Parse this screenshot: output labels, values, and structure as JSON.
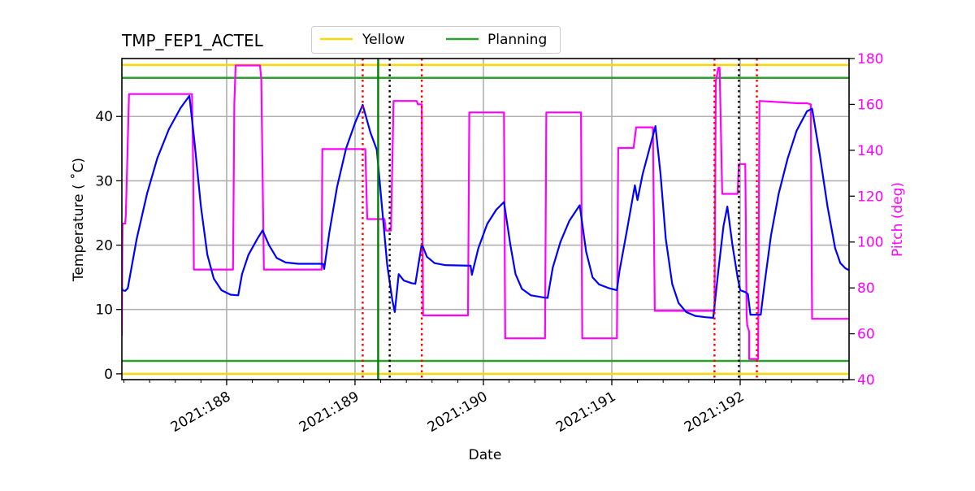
{
  "chart_data": {
    "type": "line",
    "title": "TMP_FEP1_ACTEL",
    "xlabel": "Date",
    "ylabel": "Temperature ($^\\circ$C)",
    "ylabel_display": "Temperature ( ˚C)",
    "y2label": "Pitch (deg)",
    "xlim": [
      187.184,
      192.848
    ],
    "ylim": [
      -0.9,
      49.0
    ],
    "y2lim": [
      40,
      180
    ],
    "grid": true,
    "x_ticks": [
      {
        "value": 188,
        "label": "2021:188"
      },
      {
        "value": 189,
        "label": "2021:189"
      },
      {
        "value": 190,
        "label": "2021:190"
      },
      {
        "value": 191,
        "label": "2021:191"
      },
      {
        "value": 192,
        "label": "2021:192"
      }
    ],
    "y_ticks": [
      0,
      10,
      20,
      30,
      40
    ],
    "y2_ticks": [
      40,
      60,
      80,
      100,
      120,
      140,
      160,
      180
    ],
    "legend": {
      "position": "top-center-outside",
      "entries": [
        {
          "label": "Yellow",
          "color": "#ffd700"
        },
        {
          "label": "Planning",
          "color": "#2ca02c"
        }
      ]
    },
    "limit_lines": [
      {
        "name": "Yellow high",
        "value": 48.0,
        "color": "#ffd700",
        "axis": "temperature"
      },
      {
        "name": "Planning high",
        "value": 46.0,
        "color": "#2ca02c",
        "axis": "temperature"
      },
      {
        "name": "Planning low",
        "value": 2.0,
        "color": "#2ca02c",
        "axis": "temperature"
      },
      {
        "name": "Yellow low",
        "value": 0.0,
        "color": "#ffd700",
        "axis": "temperature"
      }
    ],
    "vertical_lines": [
      {
        "x": 189.06,
        "color": "#ff0000",
        "style": "dotted"
      },
      {
        "x": 189.18,
        "color": "#008000",
        "style": "solid"
      },
      {
        "x": 189.27,
        "color": "#000000",
        "style": "dotted"
      },
      {
        "x": 189.52,
        "color": "#ff0000",
        "style": "dotted"
      },
      {
        "x": 191.8,
        "color": "#ff0000",
        "style": "dotted"
      },
      {
        "x": 191.99,
        "color": "#000000",
        "style": "dotted"
      },
      {
        "x": 192.13,
        "color": "#ff0000",
        "style": "dotted"
      }
    ],
    "series": [
      {
        "name": "TMP_FEP1_ACTEL",
        "axis": "temperature",
        "color": "#0000ff",
        "points": [
          [
            187.184,
            13.4
          ],
          [
            187.19,
            13.0
          ],
          [
            187.21,
            12.9
          ],
          [
            187.23,
            13.3
          ],
          [
            187.25,
            15.5
          ],
          [
            187.3,
            21.0
          ],
          [
            187.38,
            28.0
          ],
          [
            187.46,
            33.5
          ],
          [
            187.55,
            38.0
          ],
          [
            187.64,
            41.3
          ],
          [
            187.71,
            43.2
          ],
          [
            187.75,
            36.0
          ],
          [
            187.8,
            26.0
          ],
          [
            187.85,
            18.5
          ],
          [
            187.9,
            14.8
          ],
          [
            187.96,
            13.0
          ],
          [
            188.03,
            12.3
          ],
          [
            188.09,
            12.2
          ],
          [
            188.12,
            15.5
          ],
          [
            188.17,
            18.5
          ],
          [
            188.24,
            21.0
          ],
          [
            188.28,
            22.3
          ],
          [
            188.33,
            20.0
          ],
          [
            188.39,
            18.0
          ],
          [
            188.46,
            17.3
          ],
          [
            188.56,
            17.1
          ],
          [
            188.75,
            17.1
          ],
          [
            188.76,
            16.3
          ],
          [
            188.8,
            22.0
          ],
          [
            188.86,
            29.0
          ],
          [
            188.93,
            35.0
          ],
          [
            189.0,
            39.0
          ],
          [
            189.06,
            41.8
          ],
          [
            189.12,
            37.5
          ],
          [
            189.17,
            34.8
          ],
          [
            189.21,
            26.0
          ],
          [
            189.25,
            17.0
          ],
          [
            189.29,
            11.5
          ],
          [
            189.31,
            9.6
          ],
          [
            189.34,
            15.5
          ],
          [
            189.38,
            14.5
          ],
          [
            189.44,
            14.1
          ],
          [
            189.47,
            14.0
          ],
          [
            189.52,
            20.2
          ],
          [
            189.56,
            18.2
          ],
          [
            189.62,
            17.2
          ],
          [
            189.7,
            16.9
          ],
          [
            189.9,
            16.8
          ],
          [
            189.91,
            15.4
          ],
          [
            189.96,
            19.5
          ],
          [
            190.03,
            23.3
          ],
          [
            190.1,
            25.5
          ],
          [
            190.16,
            26.7
          ],
          [
            190.21,
            20.0
          ],
          [
            190.25,
            15.5
          ],
          [
            190.3,
            13.2
          ],
          [
            190.37,
            12.2
          ],
          [
            190.46,
            11.9
          ],
          [
            190.5,
            11.8
          ],
          [
            190.54,
            16.5
          ],
          [
            190.6,
            20.5
          ],
          [
            190.67,
            23.8
          ],
          [
            190.75,
            26.2
          ],
          [
            190.8,
            19.0
          ],
          [
            190.85,
            15.0
          ],
          [
            190.9,
            13.9
          ],
          [
            190.98,
            13.3
          ],
          [
            191.04,
            13.0
          ],
          [
            191.06,
            16.0
          ],
          [
            191.12,
            22.5
          ],
          [
            191.18,
            29.3
          ],
          [
            191.2,
            27.0
          ],
          [
            191.24,
            31.0
          ],
          [
            191.3,
            35.5
          ],
          [
            191.34,
            38.5
          ],
          [
            191.38,
            31.0
          ],
          [
            191.42,
            21.0
          ],
          [
            191.47,
            14.0
          ],
          [
            191.52,
            11.0
          ],
          [
            191.58,
            9.6
          ],
          [
            191.65,
            9.0
          ],
          [
            191.73,
            8.8
          ],
          [
            191.79,
            8.7
          ],
          [
            191.83,
            16.0
          ],
          [
            191.87,
            23.0
          ],
          [
            191.9,
            26.0
          ],
          [
            191.94,
            20.0
          ],
          [
            191.98,
            15.0
          ],
          [
            192.0,
            13.0
          ],
          [
            192.04,
            12.7
          ],
          [
            192.06,
            12.4
          ],
          [
            192.08,
            9.2
          ],
          [
            192.13,
            9.2
          ],
          [
            192.16,
            9.2
          ],
          [
            192.19,
            14.0
          ],
          [
            192.24,
            21.5
          ],
          [
            192.3,
            28.0
          ],
          [
            192.37,
            33.5
          ],
          [
            192.44,
            37.8
          ],
          [
            192.52,
            40.8
          ],
          [
            192.56,
            41.2
          ],
          [
            192.62,
            34.0
          ],
          [
            192.68,
            26.0
          ],
          [
            192.74,
            19.5
          ],
          [
            192.78,
            17.2
          ],
          [
            192.82,
            16.4
          ],
          [
            192.848,
            16.1
          ]
        ]
      },
      {
        "name": "Pitch",
        "axis": "pitch",
        "color": "#ff00ff",
        "points": [
          [
            187.184,
            59.0
          ],
          [
            187.187,
            95.0
          ],
          [
            187.19,
            108.0
          ],
          [
            187.21,
            108.0
          ],
          [
            187.215,
            112.0
          ],
          [
            187.24,
            164.5
          ],
          [
            187.73,
            164.5
          ],
          [
            187.74,
            130.0
          ],
          [
            187.745,
            88.0
          ],
          [
            188.05,
            88.0
          ],
          [
            188.06,
            160.0
          ],
          [
            188.07,
            177.0
          ],
          [
            188.26,
            177.0
          ],
          [
            188.27,
            171.0
          ],
          [
            188.29,
            88.0
          ],
          [
            188.74,
            88.0
          ],
          [
            188.745,
            140.5
          ],
          [
            189.08,
            140.5
          ],
          [
            189.095,
            110.0
          ],
          [
            189.23,
            110.0
          ],
          [
            189.24,
            105.0
          ],
          [
            189.28,
            105.0
          ],
          [
            189.3,
            161.5
          ],
          [
            189.48,
            161.5
          ],
          [
            189.49,
            160.0
          ],
          [
            189.52,
            160.0
          ],
          [
            189.53,
            68.0
          ],
          [
            189.88,
            68.0
          ],
          [
            189.89,
            156.5
          ],
          [
            190.16,
            156.5
          ],
          [
            190.17,
            58.0
          ],
          [
            190.48,
            58.0
          ],
          [
            190.49,
            156.5
          ],
          [
            190.76,
            156.5
          ],
          [
            190.77,
            58.0
          ],
          [
            191.04,
            58.0
          ],
          [
            191.05,
            141.0
          ],
          [
            191.17,
            141.0
          ],
          [
            191.19,
            150.0
          ],
          [
            191.32,
            150.0
          ],
          [
            191.335,
            70.0
          ],
          [
            191.8,
            70.0
          ],
          [
            191.81,
            170.0
          ],
          [
            191.83,
            176.0
          ],
          [
            191.84,
            176.0
          ],
          [
            191.86,
            121.0
          ],
          [
            191.98,
            121.0
          ],
          [
            191.99,
            134.0
          ],
          [
            192.04,
            134.0
          ],
          [
            192.05,
            68.0
          ],
          [
            192.055,
            63.5
          ],
          [
            192.07,
            61.0
          ],
          [
            192.07,
            49.0
          ],
          [
            192.14,
            49.0
          ],
          [
            192.15,
            161.5
          ],
          [
            192.45,
            160.5
          ],
          [
            192.52,
            160.5
          ],
          [
            192.55,
            160.0
          ],
          [
            192.56,
            66.5
          ],
          [
            192.848,
            66.5
          ]
        ]
      }
    ]
  }
}
